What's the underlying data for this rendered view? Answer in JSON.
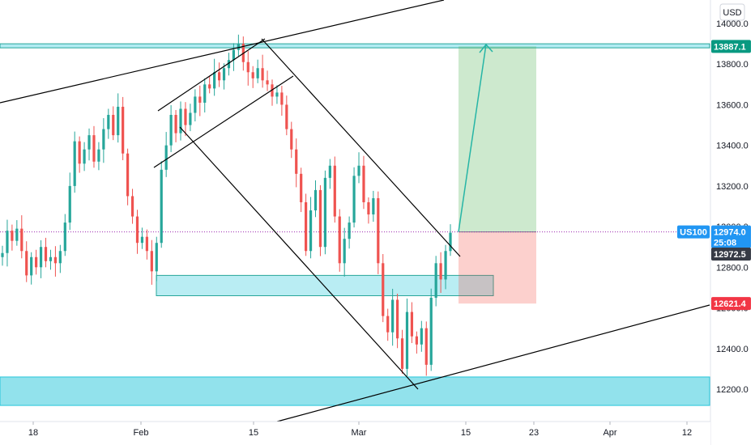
{
  "chart_data": {
    "type": "candlestick",
    "symbol": "US100",
    "currency": "USD",
    "y_ticks": [
      12200,
      12400,
      12600,
      12800,
      13000,
      13200,
      13400,
      13600,
      13800,
      14000
    ],
    "y_tick_labels": [
      "12200.0",
      "12400.0",
      "12600.0",
      "12800.0",
      "13000.0",
      "13200.0",
      "13400.0",
      "13600.0",
      "13800.0",
      "14000.0"
    ],
    "x_ticks": [
      "18",
      "Feb",
      "15",
      "Mar",
      "15",
      "23",
      "Apr",
      "12"
    ],
    "price_labels": {
      "target": {
        "value": 13887.1,
        "text": "13887.1",
        "color": "#089981"
      },
      "current": {
        "symbol": "US100",
        "value": 12974.0,
        "text": "12974.0",
        "countdown": "25:08",
        "color": "#2196f3"
      },
      "bid": {
        "value": 12972.5,
        "text": "12972.5",
        "color": "#363a45"
      },
      "stop": {
        "value": 12621.4,
        "text": "12621.4",
        "color": "#f23645"
      }
    },
    "zones": [
      {
        "name": "resistance",
        "from": 13880,
        "to": 13900
      },
      {
        "name": "demand",
        "from": 12660,
        "to": 12760
      },
      {
        "name": "support",
        "from": 12120,
        "to": 12260
      }
    ],
    "position": {
      "entry": 12974.0,
      "target": 13887.1,
      "stop": 12621.4
    },
    "colors": {
      "up": "#26a69a",
      "down": "#ef5350",
      "wick_up": "#26a69a",
      "wick_down": "#ef5350"
    },
    "series": [
      {
        "name": "price",
        "values": [
          12870,
          12980,
          12930,
          12990,
          12880,
          12760,
          12850,
          12800,
          12900,
          12830,
          12850,
          12820,
          12880,
          13020,
          13200,
          13420,
          13310,
          13380,
          13450,
          13320,
          13380,
          13480,
          13550,
          13450,
          13590,
          13360,
          13150,
          13050,
          12920,
          12950,
          12880,
          12780,
          12920,
          13280,
          13400,
          13550,
          13460,
          13580,
          13500,
          13560,
          13640,
          13610,
          13700,
          13680,
          13760,
          13720,
          13780,
          13820,
          13870,
          13900,
          13810,
          13760,
          13730,
          13780,
          13720,
          13700,
          13640,
          13660,
          13600,
          13480,
          13380,
          13260,
          13120,
          12880,
          13080,
          13180,
          12900,
          13240,
          13300,
          13050,
          12820,
          12940,
          13020,
          13250,
          13300,
          13120,
          13060,
          13140,
          12820,
          12560,
          12480,
          12640,
          12450,
          12300,
          12580,
          12460,
          12420,
          12500,
          12320,
          12650,
          12820,
          12740,
          12880,
          12970
        ]
      }
    ]
  }
}
